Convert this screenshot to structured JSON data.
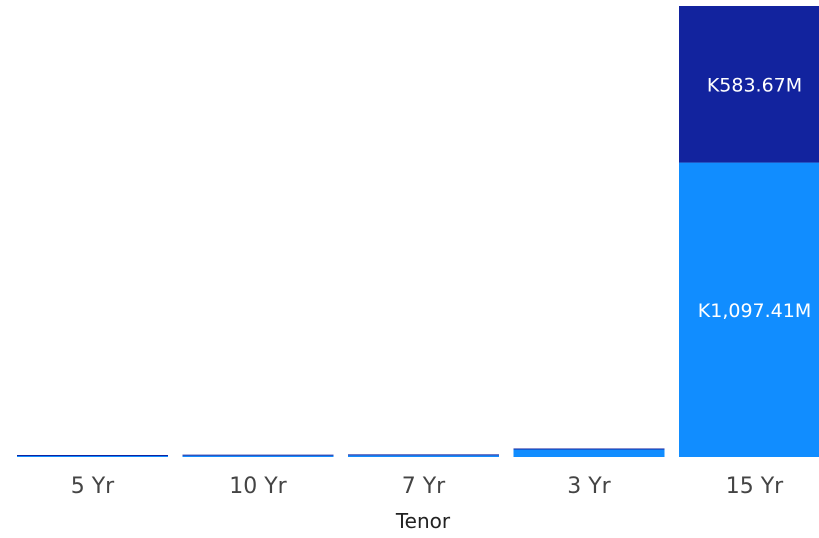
{
  "chart_data": {
    "type": "bar",
    "stacked": true,
    "categories": [
      "5 Yr",
      "10 Yr",
      "7 Yr",
      "3 Yr",
      "15 Yr"
    ],
    "series": [
      {
        "color": "#118DFF",
        "values": [
          3,
          5,
          6,
          28,
          1097.41
        ],
        "labels": [
          "",
          "",
          "",
          "",
          "K1,097.41M"
        ]
      },
      {
        "color": "#12239E",
        "values": [
          1,
          2,
          2,
          3,
          583.67
        ],
        "labels": [
          "",
          "",
          "",
          "",
          "K583.67M"
        ]
      }
    ],
    "xlabel": "Tenor",
    "ylabel": "",
    "ylim": [
      0,
      1681.08
    ],
    "grid": false,
    "legend": "none"
  }
}
